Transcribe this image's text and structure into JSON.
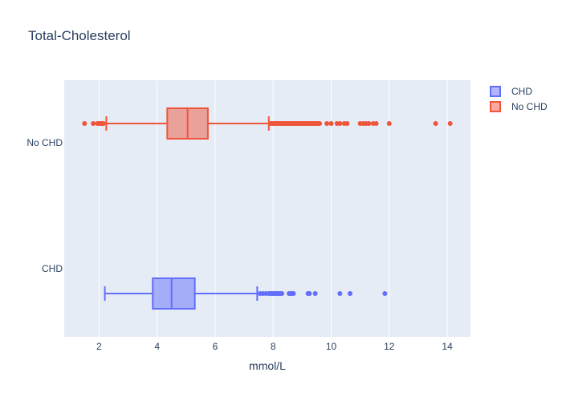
{
  "chart_data": {
    "type": "box",
    "orientation": "horizontal",
    "title": "Total-Cholesterol",
    "xlabel": "mmol/L",
    "ylabel": "",
    "xlim": [
      0.8,
      14.8
    ],
    "xticks": [
      2,
      4,
      6,
      8,
      10,
      12,
      14
    ],
    "grid": true,
    "legend_position": "top-right",
    "series": [
      {
        "name": "CHD",
        "category": "CHD",
        "color": "#636efa",
        "whisker_low": 2.2,
        "q1": 3.85,
        "median": 4.5,
        "q3": 5.3,
        "whisker_high": 7.45,
        "outliers": [
          7.55,
          7.65,
          7.75,
          7.85,
          7.9,
          7.95,
          8.0,
          8.05,
          8.1,
          8.15,
          8.2,
          8.25,
          8.3,
          8.55,
          8.6,
          8.65,
          8.7,
          9.2,
          9.25,
          9.45,
          10.3,
          10.65,
          11.85
        ]
      },
      {
        "name": "No CHD",
        "category": "No CHD",
        "color": "#ef553b",
        "whisker_low": 2.25,
        "q1": 4.35,
        "median": 5.05,
        "q3": 5.75,
        "whisker_high": 7.85,
        "outliers": [
          1.5,
          1.8,
          1.95,
          2.0,
          2.05,
          2.1,
          2.15,
          7.9,
          7.95,
          8.0,
          8.05,
          8.1,
          8.15,
          8.2,
          8.25,
          8.3,
          8.35,
          8.4,
          8.45,
          8.5,
          8.55,
          8.6,
          8.65,
          8.7,
          8.75,
          8.8,
          8.85,
          8.9,
          8.95,
          9.0,
          9.05,
          9.1,
          9.15,
          9.2,
          9.25,
          9.3,
          9.35,
          9.4,
          9.45,
          9.5,
          9.55,
          9.6,
          9.85,
          10.0,
          10.2,
          10.3,
          10.45,
          10.55,
          11.0,
          11.1,
          11.2,
          11.3,
          11.45,
          11.55,
          12.0,
          13.6,
          14.1
        ]
      }
    ]
  }
}
